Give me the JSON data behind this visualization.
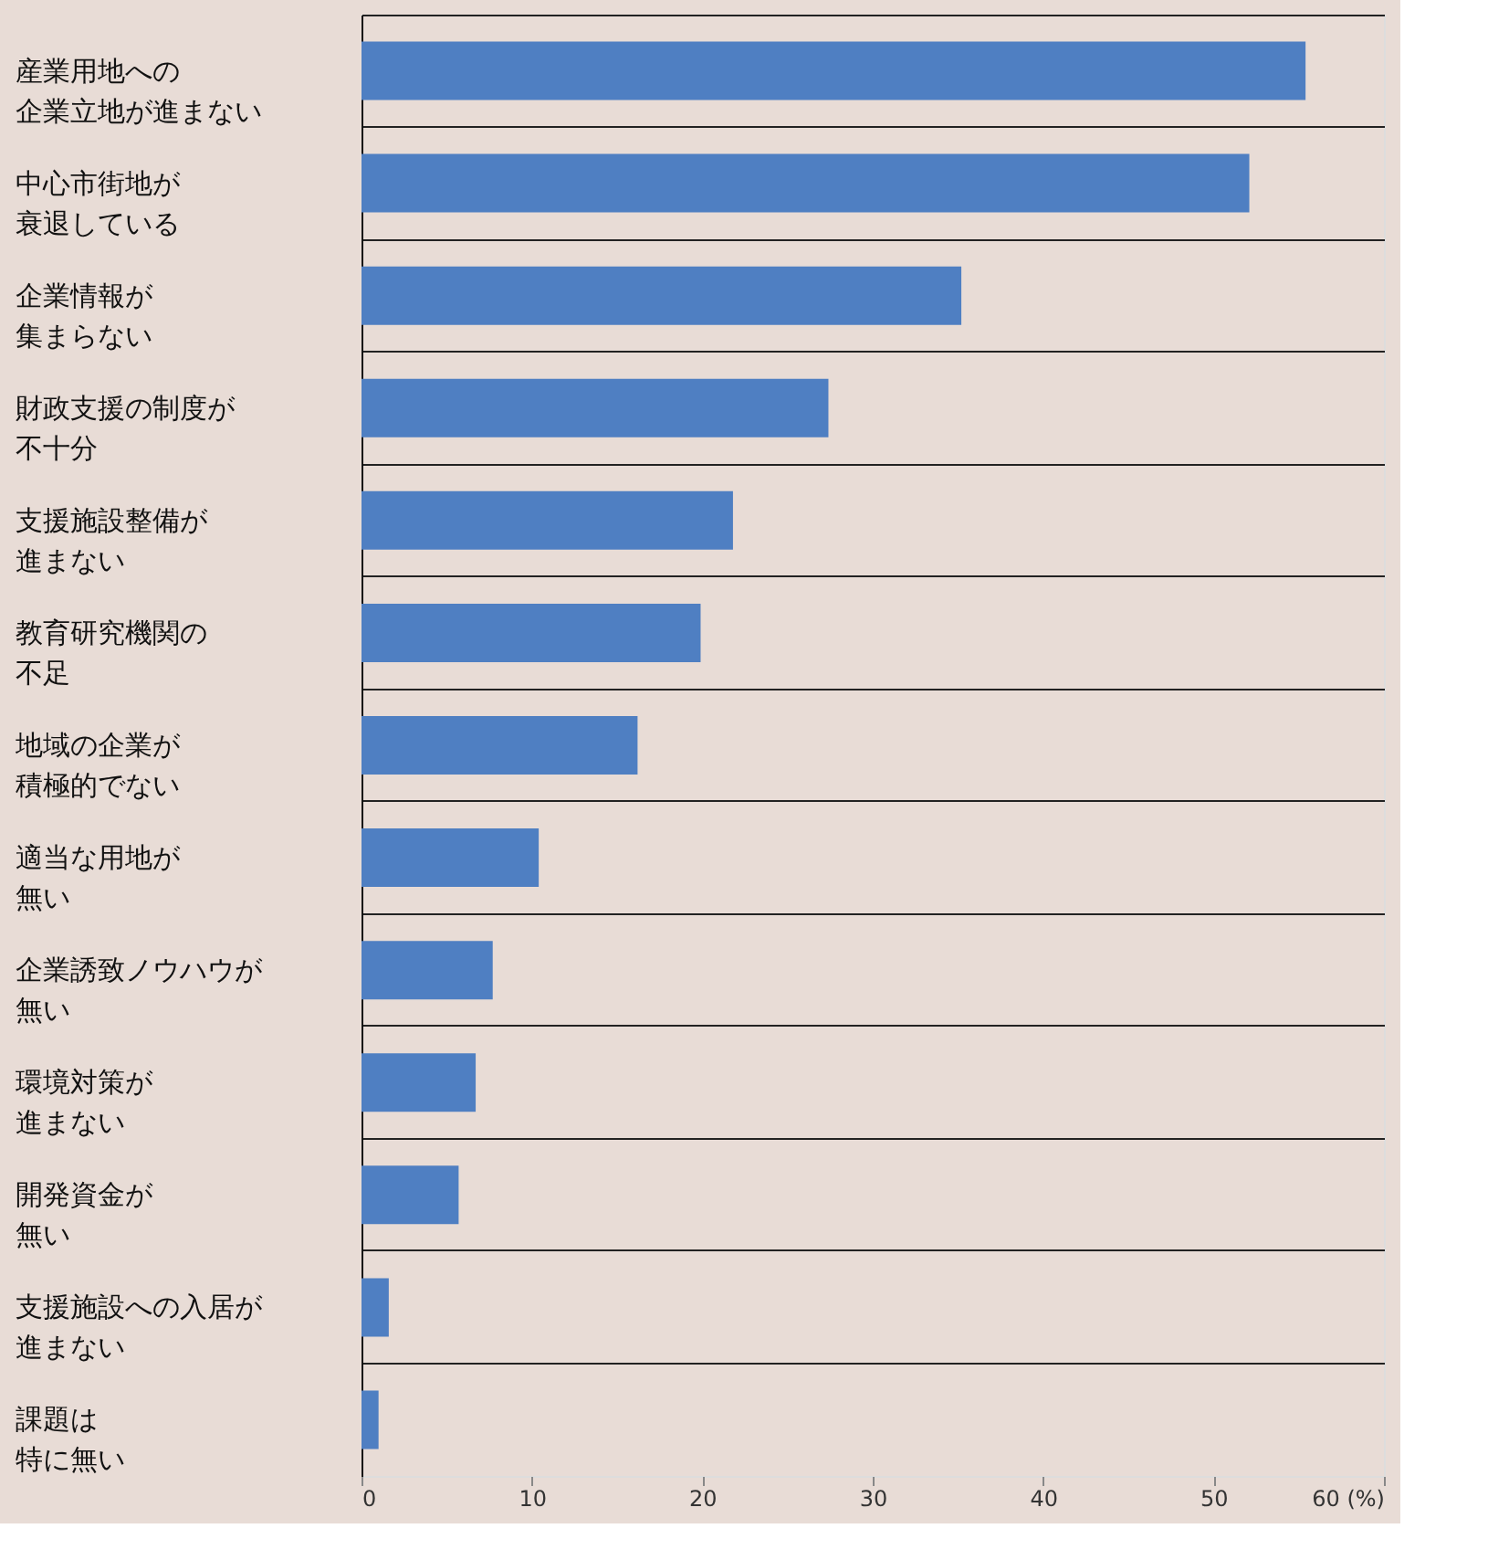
{
  "chart_data": {
    "type": "bar",
    "orientation": "horizontal",
    "categories": [
      "産業用地への企業立地が進まない",
      "中心市街地が衰退している",
      "企業情報が集まらない",
      "財政支援の制度が不十分",
      "支援施設整備が進まない",
      "教育研究機関の不足",
      "地域の企業が積極的でない",
      "適当な用地が無い",
      "企業誘致ノウハウが無い",
      "環境対策が進まない",
      "開発資金が無い",
      "支援施設への入居が進まない",
      "課題は特に無い"
    ],
    "values": [
      55.4,
      52.1,
      35.2,
      27.4,
      21.8,
      19.9,
      16.2,
      10.4,
      7.7,
      6.7,
      5.7,
      1.6,
      1.0
    ],
    "color": "#4f7fc2",
    "xlim": [
      0,
      60
    ],
    "xticks": [
      0,
      10,
      20,
      30,
      40,
      50,
      {
        "value": 60,
        "label": "60 (%)"
      }
    ],
    "grid": "y"
  }
}
